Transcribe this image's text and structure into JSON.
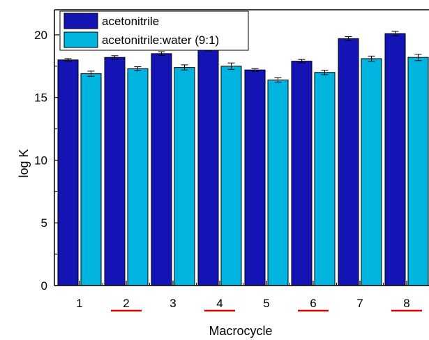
{
  "chart_data": {
    "type": "bar",
    "title": "",
    "xlabel": "Macrocycle",
    "ylabel": "log K",
    "categories": [
      "1",
      "2",
      "3",
      "4",
      "5",
      "6",
      "7",
      "8"
    ],
    "highlighted_categories": [
      "2",
      "4",
      "6",
      "8"
    ],
    "ylim": [
      0,
      22
    ],
    "yticks": [
      0,
      5,
      10,
      15,
      20
    ],
    "grid": false,
    "legend_position": "top-left",
    "series": [
      {
        "name": "acetonitrile",
        "color": "#1414b4",
        "values": [
          18.0,
          18.2,
          18.5,
          18.9,
          17.2,
          17.9,
          19.7,
          20.1
        ],
        "errors": [
          0.05,
          0.08,
          0.1,
          0.12,
          0.05,
          0.08,
          0.1,
          0.12
        ]
      },
      {
        "name": "acetonitrile:water (9:1)",
        "color": "#00b4e0",
        "values": [
          16.9,
          17.3,
          17.4,
          17.5,
          16.4,
          17.0,
          18.1,
          18.2
        ],
        "errors": [
          0.15,
          0.1,
          0.15,
          0.2,
          0.12,
          0.12,
          0.15,
          0.2
        ]
      }
    ],
    "highlight_color": "#e00000"
  }
}
